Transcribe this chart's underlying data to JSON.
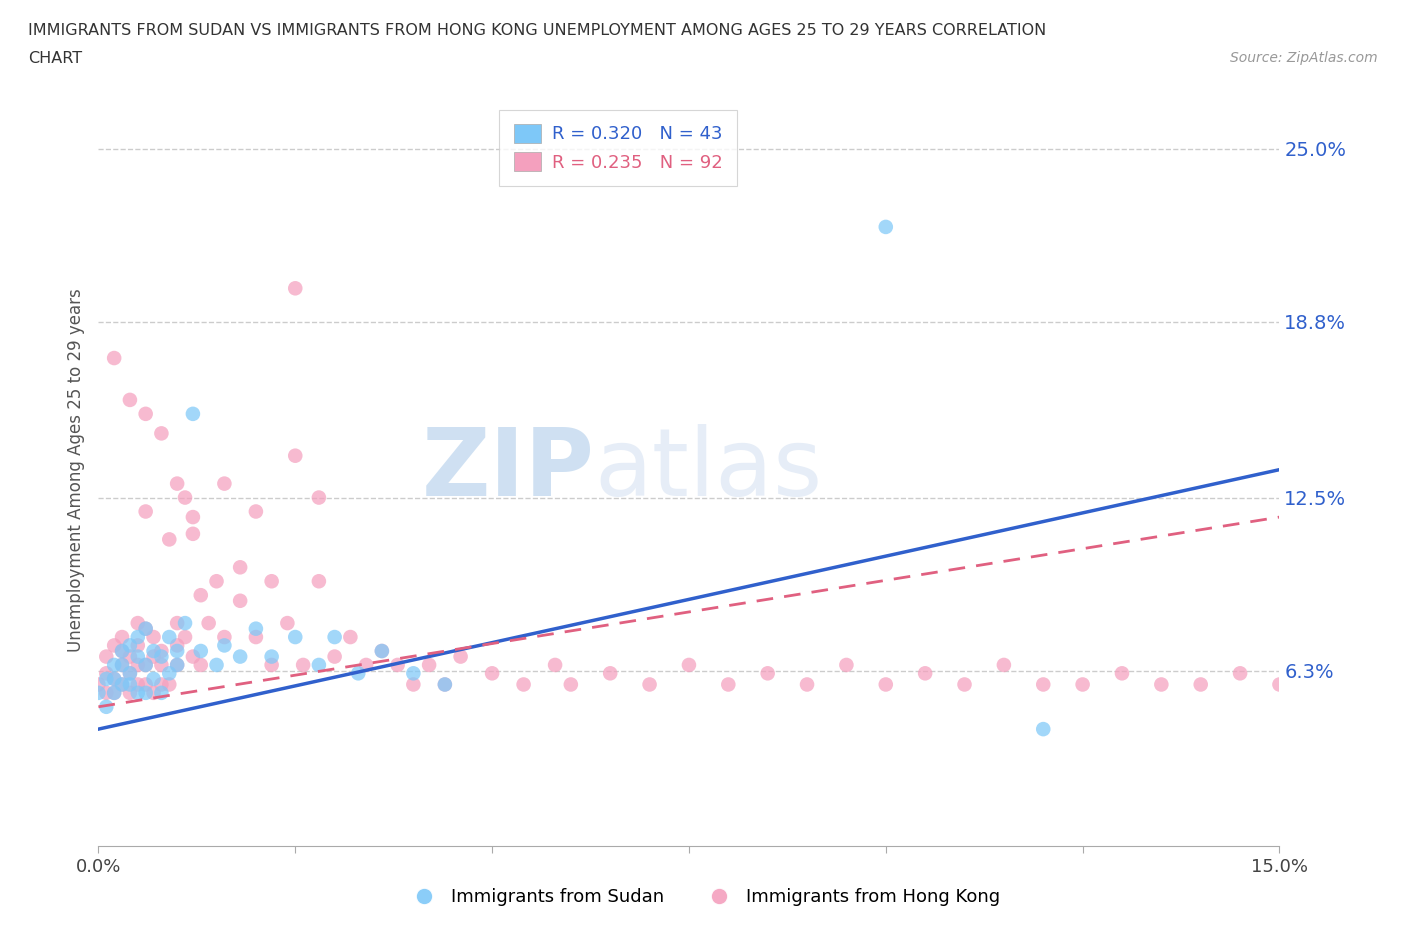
{
  "title_line1": "IMMIGRANTS FROM SUDAN VS IMMIGRANTS FROM HONG KONG UNEMPLOYMENT AMONG AGES 25 TO 29 YEARS CORRELATION",
  "title_line2": "CHART",
  "source_text": "Source: ZipAtlas.com",
  "ylabel": "Unemployment Among Ages 25 to 29 years",
  "xlim": [
    0.0,
    0.15
  ],
  "ylim": [
    0.0,
    0.27
  ],
  "ytick_values": [
    0.063,
    0.125,
    0.188,
    0.25
  ],
  "ytick_labels": [
    "6.3%",
    "12.5%",
    "18.8%",
    "25.0%"
  ],
  "watermark_zip": "ZIP",
  "watermark_atlas": "atlas",
  "legend_sudan": "Immigrants from Sudan",
  "legend_hk": "Immigrants from Hong Kong",
  "sudan_R": "R = 0.320",
  "sudan_N": "N = 43",
  "hk_R": "R = 0.235",
  "hk_N": "N = 92",
  "sudan_color": "#7EC8F8",
  "hk_color": "#F4A0BE",
  "sudan_line_color": "#3060CC",
  "hk_line_color": "#E06080",
  "background_color": "#FFFFFF",
  "grid_color": "#CCCCCC",
  "sudan_trend_x0": 0.0,
  "sudan_trend_y0": 0.042,
  "sudan_trend_x1": 0.15,
  "sudan_trend_y1": 0.135,
  "hk_trend_x0": 0.0,
  "hk_trend_y0": 0.05,
  "hk_trend_x1": 0.15,
  "hk_trend_y1": 0.118,
  "sudan_points_x": [
    0.0,
    0.001,
    0.001,
    0.002,
    0.002,
    0.002,
    0.003,
    0.003,
    0.003,
    0.004,
    0.004,
    0.004,
    0.005,
    0.005,
    0.005,
    0.006,
    0.006,
    0.006,
    0.007,
    0.007,
    0.008,
    0.008,
    0.009,
    0.009,
    0.01,
    0.01,
    0.011,
    0.012,
    0.013,
    0.015,
    0.016,
    0.018,
    0.02,
    0.022,
    0.025,
    0.028,
    0.03,
    0.033,
    0.036,
    0.04,
    0.044,
    0.1,
    0.12
  ],
  "sudan_points_y": [
    0.055,
    0.06,
    0.05,
    0.065,
    0.055,
    0.06,
    0.07,
    0.058,
    0.065,
    0.062,
    0.072,
    0.058,
    0.068,
    0.055,
    0.075,
    0.065,
    0.078,
    0.055,
    0.07,
    0.06,
    0.068,
    0.055,
    0.075,
    0.062,
    0.07,
    0.065,
    0.08,
    0.155,
    0.07,
    0.065,
    0.072,
    0.068,
    0.078,
    0.068,
    0.075,
    0.065,
    0.075,
    0.062,
    0.07,
    0.062,
    0.058,
    0.222,
    0.042
  ],
  "hk_points_x": [
    0.0,
    0.001,
    0.001,
    0.001,
    0.002,
    0.002,
    0.002,
    0.003,
    0.003,
    0.003,
    0.003,
    0.004,
    0.004,
    0.004,
    0.005,
    0.005,
    0.005,
    0.005,
    0.006,
    0.006,
    0.006,
    0.006,
    0.007,
    0.007,
    0.007,
    0.008,
    0.008,
    0.008,
    0.009,
    0.009,
    0.01,
    0.01,
    0.01,
    0.011,
    0.011,
    0.012,
    0.012,
    0.013,
    0.013,
    0.014,
    0.015,
    0.016,
    0.016,
    0.018,
    0.018,
    0.02,
    0.02,
    0.022,
    0.022,
    0.024,
    0.025,
    0.026,
    0.028,
    0.028,
    0.03,
    0.032,
    0.034,
    0.036,
    0.038,
    0.04,
    0.042,
    0.044,
    0.046,
    0.05,
    0.054,
    0.058,
    0.06,
    0.065,
    0.07,
    0.075,
    0.08,
    0.085,
    0.09,
    0.095,
    0.1,
    0.105,
    0.11,
    0.115,
    0.12,
    0.125,
    0.13,
    0.135,
    0.14,
    0.145,
    0.15,
    0.002,
    0.004,
    0.006,
    0.008,
    0.01,
    0.012,
    0.025
  ],
  "hk_points_y": [
    0.058,
    0.062,
    0.055,
    0.068,
    0.06,
    0.055,
    0.072,
    0.065,
    0.058,
    0.075,
    0.07,
    0.062,
    0.068,
    0.055,
    0.065,
    0.072,
    0.058,
    0.08,
    0.065,
    0.058,
    0.12,
    0.078,
    0.068,
    0.055,
    0.075,
    0.058,
    0.07,
    0.065,
    0.11,
    0.058,
    0.08,
    0.072,
    0.065,
    0.125,
    0.075,
    0.068,
    0.112,
    0.09,
    0.065,
    0.08,
    0.095,
    0.13,
    0.075,
    0.088,
    0.1,
    0.12,
    0.075,
    0.095,
    0.065,
    0.08,
    0.14,
    0.065,
    0.095,
    0.125,
    0.068,
    0.075,
    0.065,
    0.07,
    0.065,
    0.058,
    0.065,
    0.058,
    0.068,
    0.062,
    0.058,
    0.065,
    0.058,
    0.062,
    0.058,
    0.065,
    0.058,
    0.062,
    0.058,
    0.065,
    0.058,
    0.062,
    0.058,
    0.065,
    0.058,
    0.058,
    0.062,
    0.058,
    0.058,
    0.062,
    0.058,
    0.175,
    0.16,
    0.155,
    0.148,
    0.13,
    0.118,
    0.2
  ]
}
